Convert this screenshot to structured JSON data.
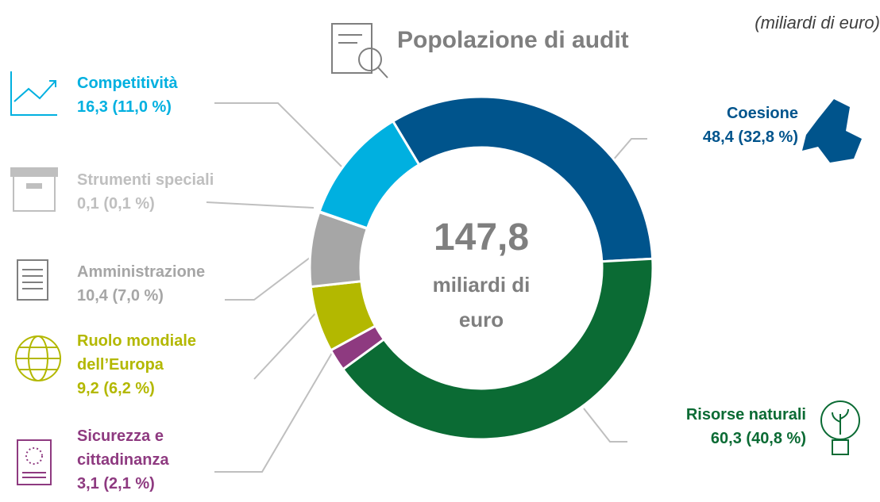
{
  "chart_data": {
    "type": "pie",
    "donut": true,
    "title": "Popolazione di audit",
    "unit": "(miliardi di euro)",
    "center_value": "147,8",
    "center_text": "miliardi di euro",
    "categories": [
      "Coesione",
      "Risorse naturali",
      "Sicurezza e cittadinanza",
      "Ruolo mondiale dell’Europa",
      "Amministrazione",
      "Strumenti speciali",
      "Competitività"
    ],
    "values": [
      48.4,
      60.3,
      3.1,
      9.2,
      10.4,
      0.1,
      16.3
    ],
    "value_labels": [
      "48,4 (32,8 %)",
      "60,3 (40,8 %)",
      "3,1 (2,1 %)",
      "9,2 (6,2 %)",
      "10,4 (7,0 %)",
      "0,1 (0,1 %)",
      "16,3 (11,0 %)"
    ],
    "colors": [
      "#00548c",
      "#0b6b34",
      "#8e3a80",
      "#b3b800",
      "#a6a6a6",
      "#bfbfbf",
      "#00b0e0"
    ]
  }
}
